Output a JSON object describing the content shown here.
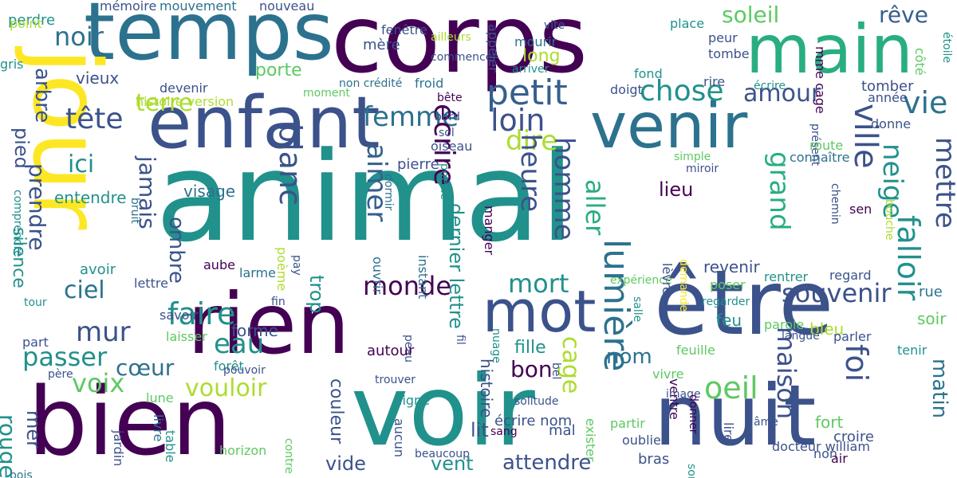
{
  "palette": {
    "dark_purple": "#440154",
    "indigo": "#3b528b",
    "slate_blue": "#355f8d",
    "teal_blue": "#2c728e",
    "teal": "#21918c",
    "sea_green": "#28ae80",
    "green": "#5ec962",
    "light_green": "#addc30",
    "yellow": "#fde725"
  },
  "words": [
    {
      "text": "animal",
      "color": "#21918c"
    },
    {
      "text": "corps",
      "color": "#440154"
    },
    {
      "text": "temps",
      "color": "#2c728e"
    },
    {
      "text": "main",
      "color": "#28ae80"
    },
    {
      "text": "jour",
      "color": "#fde725"
    },
    {
      "text": "enfant",
      "color": "#3b528b"
    },
    {
      "text": "venir",
      "color": "#2c728e"
    },
    {
      "text": "rien",
      "color": "#440154"
    },
    {
      "text": "être",
      "color": "#3b528b"
    },
    {
      "text": "bien",
      "color": "#440154"
    },
    {
      "text": "voir",
      "color": "#21918c"
    },
    {
      "text": "nuit",
      "color": "#3b528b"
    },
    {
      "text": "mot",
      "color": "#3b528b"
    },
    {
      "text": "petit",
      "color": "#355f8d"
    },
    {
      "text": "soleil",
      "color": "#5ec962"
    },
    {
      "text": "rêve",
      "color": "#355f8d"
    },
    {
      "text": "terre",
      "color": "#addc30"
    },
    {
      "text": "noir",
      "color": "#2c728e"
    },
    {
      "text": "chose",
      "color": "#21918c"
    },
    {
      "text": "femme",
      "color": "#2c728e"
    },
    {
      "text": "amour",
      "color": "#3b528b"
    },
    {
      "text": "vie",
      "color": "#2c728e"
    },
    {
      "text": "tête",
      "color": "#3b528b"
    },
    {
      "text": "loin",
      "color": "#3b528b"
    },
    {
      "text": "dire",
      "color": "#addc30"
    },
    {
      "text": "ici",
      "color": "#21918c"
    },
    {
      "text": "blanc",
      "color": "#3b528b"
    },
    {
      "text": "heure",
      "color": "#3b528b"
    },
    {
      "text": "homme",
      "color": "#3b528b"
    },
    {
      "text": "écrire",
      "color": "#440154"
    },
    {
      "text": "aimer",
      "color": "#355f8d"
    },
    {
      "text": "lieu",
      "color": "#440154"
    },
    {
      "text": "ville",
      "color": "#3b528b"
    },
    {
      "text": "neige",
      "color": "#21918c"
    },
    {
      "text": "mettre",
      "color": "#3b528b"
    },
    {
      "text": "grand",
      "color": "#28ae80"
    },
    {
      "text": "falloir",
      "color": "#21918c"
    },
    {
      "text": "jamais",
      "color": "#3b528b"
    },
    {
      "text": "ombre",
      "color": "#3b528b"
    },
    {
      "text": "visage",
      "color": "#2c728e"
    },
    {
      "text": "entendre",
      "color": "#21918c"
    },
    {
      "text": "prendre",
      "color": "#3b528b"
    },
    {
      "text": "pied",
      "color": "#3b528b"
    },
    {
      "text": "arbre",
      "color": "#3b528b"
    },
    {
      "text": "silence",
      "color": "#21918c"
    },
    {
      "text": "monde",
      "color": "#440154"
    },
    {
      "text": "faire",
      "color": "#21918c"
    },
    {
      "text": "ciel",
      "color": "#2c728e"
    },
    {
      "text": "mort",
      "color": "#21918c"
    },
    {
      "text": "souvenir",
      "color": "#3b528b"
    },
    {
      "text": "lumière",
      "color": "#2c728e"
    },
    {
      "text": "aller",
      "color": "#28ae80"
    },
    {
      "text": "trop",
      "color": "#21918c"
    },
    {
      "text": "mur",
      "color": "#3b528b"
    },
    {
      "text": "eau",
      "color": "#21918c"
    },
    {
      "text": "forme",
      "color": "#3b528b"
    },
    {
      "text": "passer",
      "color": "#21918c"
    },
    {
      "text": "cœur",
      "color": "#2c728e"
    },
    {
      "text": "voix",
      "color": "#5ec962"
    },
    {
      "text": "vouloir",
      "color": "#addc30"
    },
    {
      "text": "oeil",
      "color": "#5ec962"
    },
    {
      "text": "foi",
      "color": "#3b528b"
    },
    {
      "text": "maison",
      "color": "#3b528b"
    },
    {
      "text": "matin",
      "color": "#2c728e"
    },
    {
      "text": "rouge",
      "color": "#21918c"
    },
    {
      "text": "mer",
      "color": "#3b528b"
    },
    {
      "text": "fille",
      "color": "#21918c"
    },
    {
      "text": "bon",
      "color": "#440154"
    },
    {
      "text": "cage",
      "color": "#addc30"
    },
    {
      "text": "nom",
      "color": "#2c728e"
    },
    {
      "text": "couleur",
      "color": "#3b528b"
    },
    {
      "text": "vide",
      "color": "#3b528b"
    },
    {
      "text": "vent",
      "color": "#21918c"
    },
    {
      "text": "attendre",
      "color": "#3b528b"
    },
    {
      "text": "bleu",
      "color": "#addc30"
    },
    {
      "text": "rue",
      "color": "#2c728e"
    },
    {
      "text": "soir",
      "color": "#5ec962"
    },
    {
      "text": "porte",
      "color": "#5ec962"
    },
    {
      "text": "vieux",
      "color": "#3b528b"
    },
    {
      "text": "long",
      "color": "#addc30"
    },
    {
      "text": "mère",
      "color": "#3b528b"
    },
    {
      "text": "mourir",
      "color": "#2c728e"
    },
    {
      "text": "fenêtre",
      "color": "#3b528b"
    },
    {
      "text": "perdre",
      "color": "#21918c"
    },
    {
      "text": "gris",
      "color": "#21918c"
    },
    {
      "text": "point",
      "color": "#addc30"
    },
    {
      "text": "mémoire",
      "color": "#3b528b"
    },
    {
      "text": "mouvement",
      "color": "#2c728e"
    },
    {
      "text": "nouveau",
      "color": "#3b528b"
    },
    {
      "text": "devenir",
      "color": "#3b528b"
    },
    {
      "text": "histoire version",
      "color": "#addc30"
    },
    {
      "text": "non crédité",
      "color": "#2c728e"
    },
    {
      "text": "moment",
      "color": "#5ec962"
    },
    {
      "text": "froid",
      "color": "#2c728e"
    },
    {
      "text": "bête",
      "color": "#440154"
    },
    {
      "text": "bord",
      "color": "#3b528b"
    },
    {
      "text": "sol",
      "color": "#3b528b"
    },
    {
      "text": "oiseau",
      "color": "#3b528b"
    },
    {
      "text": "doigt",
      "color": "#3b528b"
    },
    {
      "text": "rire",
      "color": "#3b528b"
    },
    {
      "text": "écrire",
      "color": "#21918c"
    },
    {
      "text": "tomber",
      "color": "#3b528b"
    },
    {
      "text": "donne",
      "color": "#3b528b"
    },
    {
      "text": "année",
      "color": "#3b528b"
    },
    {
      "text": "sen",
      "color": "#440154"
    },
    {
      "text": "fond",
      "color": "#21918c"
    },
    {
      "text": "tombe",
      "color": "#3b528b"
    },
    {
      "text": "peur",
      "color": "#3b528b"
    },
    {
      "text": "mme cage",
      "color": "#440154"
    },
    {
      "text": "place",
      "color": "#21918c"
    },
    {
      "text": "côté",
      "color": "#5ec962"
    },
    {
      "text": "étoile",
      "color": "#21918c"
    },
    {
      "text": "ailleurs",
      "color": "#addc30"
    },
    {
      "text": "commencer",
      "color": "#3b528b"
    },
    {
      "text": "appeler",
      "color": "#3b528b"
    },
    {
      "text": "vite",
      "color": "#3b528b"
    },
    {
      "text": "arriver",
      "color": "#21918c"
    },
    {
      "text": "présent",
      "color": "#3b528b"
    },
    {
      "text": "route",
      "color": "#5ec962"
    },
    {
      "text": "connaître",
      "color": "#2c728e"
    },
    {
      "text": "simple",
      "color": "#5ec962"
    },
    {
      "text": "miroir",
      "color": "#3b528b"
    },
    {
      "text": "chemin",
      "color": "#3b528b"
    },
    {
      "text": "bouche",
      "color": "#addc30"
    },
    {
      "text": "bruit",
      "color": "#2c728e"
    },
    {
      "text": "comprendre",
      "color": "#21918c"
    },
    {
      "text": "pierre",
      "color": "#3b528b"
    },
    {
      "text": "dormir",
      "color": "#2c728e"
    },
    {
      "text": "poésie",
      "color": "#21918c"
    },
    {
      "text": "dernier lettre",
      "color": "#21918c"
    },
    {
      "text": "manger",
      "color": "#440154"
    },
    {
      "text": "instant",
      "color": "#2c728e"
    },
    {
      "text": "ouvrir",
      "color": "#2c728e"
    },
    {
      "text": "poème",
      "color": "#addc30"
    },
    {
      "text": "pay",
      "color": "#3b528b"
    },
    {
      "text": "avoir",
      "color": "#21918c"
    },
    {
      "text": "aube",
      "color": "#440154"
    },
    {
      "text": "lettre",
      "color": "#3b528b"
    },
    {
      "text": "larme",
      "color": "#2c728e"
    },
    {
      "text": "fin",
      "color": "#3b528b"
    },
    {
      "text": "tour",
      "color": "#21918c"
    },
    {
      "text": "savoir",
      "color": "#3b528b"
    },
    {
      "text": "part",
      "color": "#3b528b"
    },
    {
      "text": "laisser",
      "color": "#5ec962"
    },
    {
      "text": "forêt",
      "color": "#21918c"
    },
    {
      "text": "pouvoir",
      "color": "#3b528b"
    },
    {
      "text": "père",
      "color": "#3b528b"
    },
    {
      "text": "lune",
      "color": "#5ec962"
    },
    {
      "text": "livre",
      "color": "#2c728e"
    },
    {
      "text": "table",
      "color": "#21918c"
    },
    {
      "text": "jardin",
      "color": "#3b528b"
    },
    {
      "text": "bois",
      "color": "#2c728e"
    },
    {
      "text": "horizon",
      "color": "#5ec962"
    },
    {
      "text": "contre",
      "color": "#5ec962"
    },
    {
      "text": "beaucoup",
      "color": "#3b528b"
    },
    {
      "text": "aucun",
      "color": "#3b528b"
    },
    {
      "text": "ligne",
      "color": "#21918c"
    },
    {
      "text": "peau",
      "color": "#3b528b"
    },
    {
      "text": "autour",
      "color": "#440154"
    },
    {
      "text": "fil",
      "color": "#3b528b"
    },
    {
      "text": "nuage",
      "color": "#21918c"
    },
    {
      "text": "histoire",
      "color": "#3b528b"
    },
    {
      "text": "lit",
      "color": "#3b528b"
    },
    {
      "text": "sang",
      "color": "#440154"
    },
    {
      "text": "bel",
      "color": "#3b528b"
    },
    {
      "text": "solitude",
      "color": "#3b528b"
    },
    {
      "text": "écrire nom",
      "color": "#3b528b"
    },
    {
      "text": "mal",
      "color": "#3b528b"
    },
    {
      "text": "exister",
      "color": "#5ec962"
    },
    {
      "text": "trouver",
      "color": "#3b528b"
    },
    {
      "text": "expérience",
      "color": "#5ec962"
    },
    {
      "text": "salle",
      "color": "#21918c"
    },
    {
      "text": "lèvre",
      "color": "#3b528b"
    },
    {
      "text": "demande",
      "color": "#fde725"
    },
    {
      "text": "revenir",
      "color": "#3b528b"
    },
    {
      "text": "feu",
      "color": "#21918c"
    },
    {
      "text": "rentrer",
      "color": "#21918c"
    },
    {
      "text": "regard",
      "color": "#3b528b"
    },
    {
      "text": "poser",
      "color": "#5ec962"
    },
    {
      "text": "regarder",
      "color": "#21918c"
    },
    {
      "text": "parole",
      "color": "#5ec962"
    },
    {
      "text": "langue",
      "color": "#3b528b"
    },
    {
      "text": "feuille",
      "color": "#5ec962"
    },
    {
      "text": "parler",
      "color": "#3b528b"
    },
    {
      "text": "tenir",
      "color": "#21918c"
    },
    {
      "text": "vivre",
      "color": "#5ec962"
    },
    {
      "text": "ventre",
      "color": "#440154"
    },
    {
      "text": "image",
      "color": "#3b528b"
    },
    {
      "text": "donner",
      "color": "#440154"
    },
    {
      "text": "partir",
      "color": "#5ec962"
    },
    {
      "text": "oublier",
      "color": "#3b528b"
    },
    {
      "text": "bras",
      "color": "#3b528b"
    },
    {
      "text": "sortir",
      "color": "#21918c"
    },
    {
      "text": "lire",
      "color": "#3b528b"
    },
    {
      "text": "âme",
      "color": "#3b528b"
    },
    {
      "text": "fort",
      "color": "#5ec962"
    },
    {
      "text": "croire",
      "color": "#3b528b"
    },
    {
      "text": "docteur william",
      "color": "#3b528b"
    },
    {
      "text": "non",
      "color": "#3b528b"
    },
    {
      "text": "air",
      "color": "#440154"
    }
  ]
}
